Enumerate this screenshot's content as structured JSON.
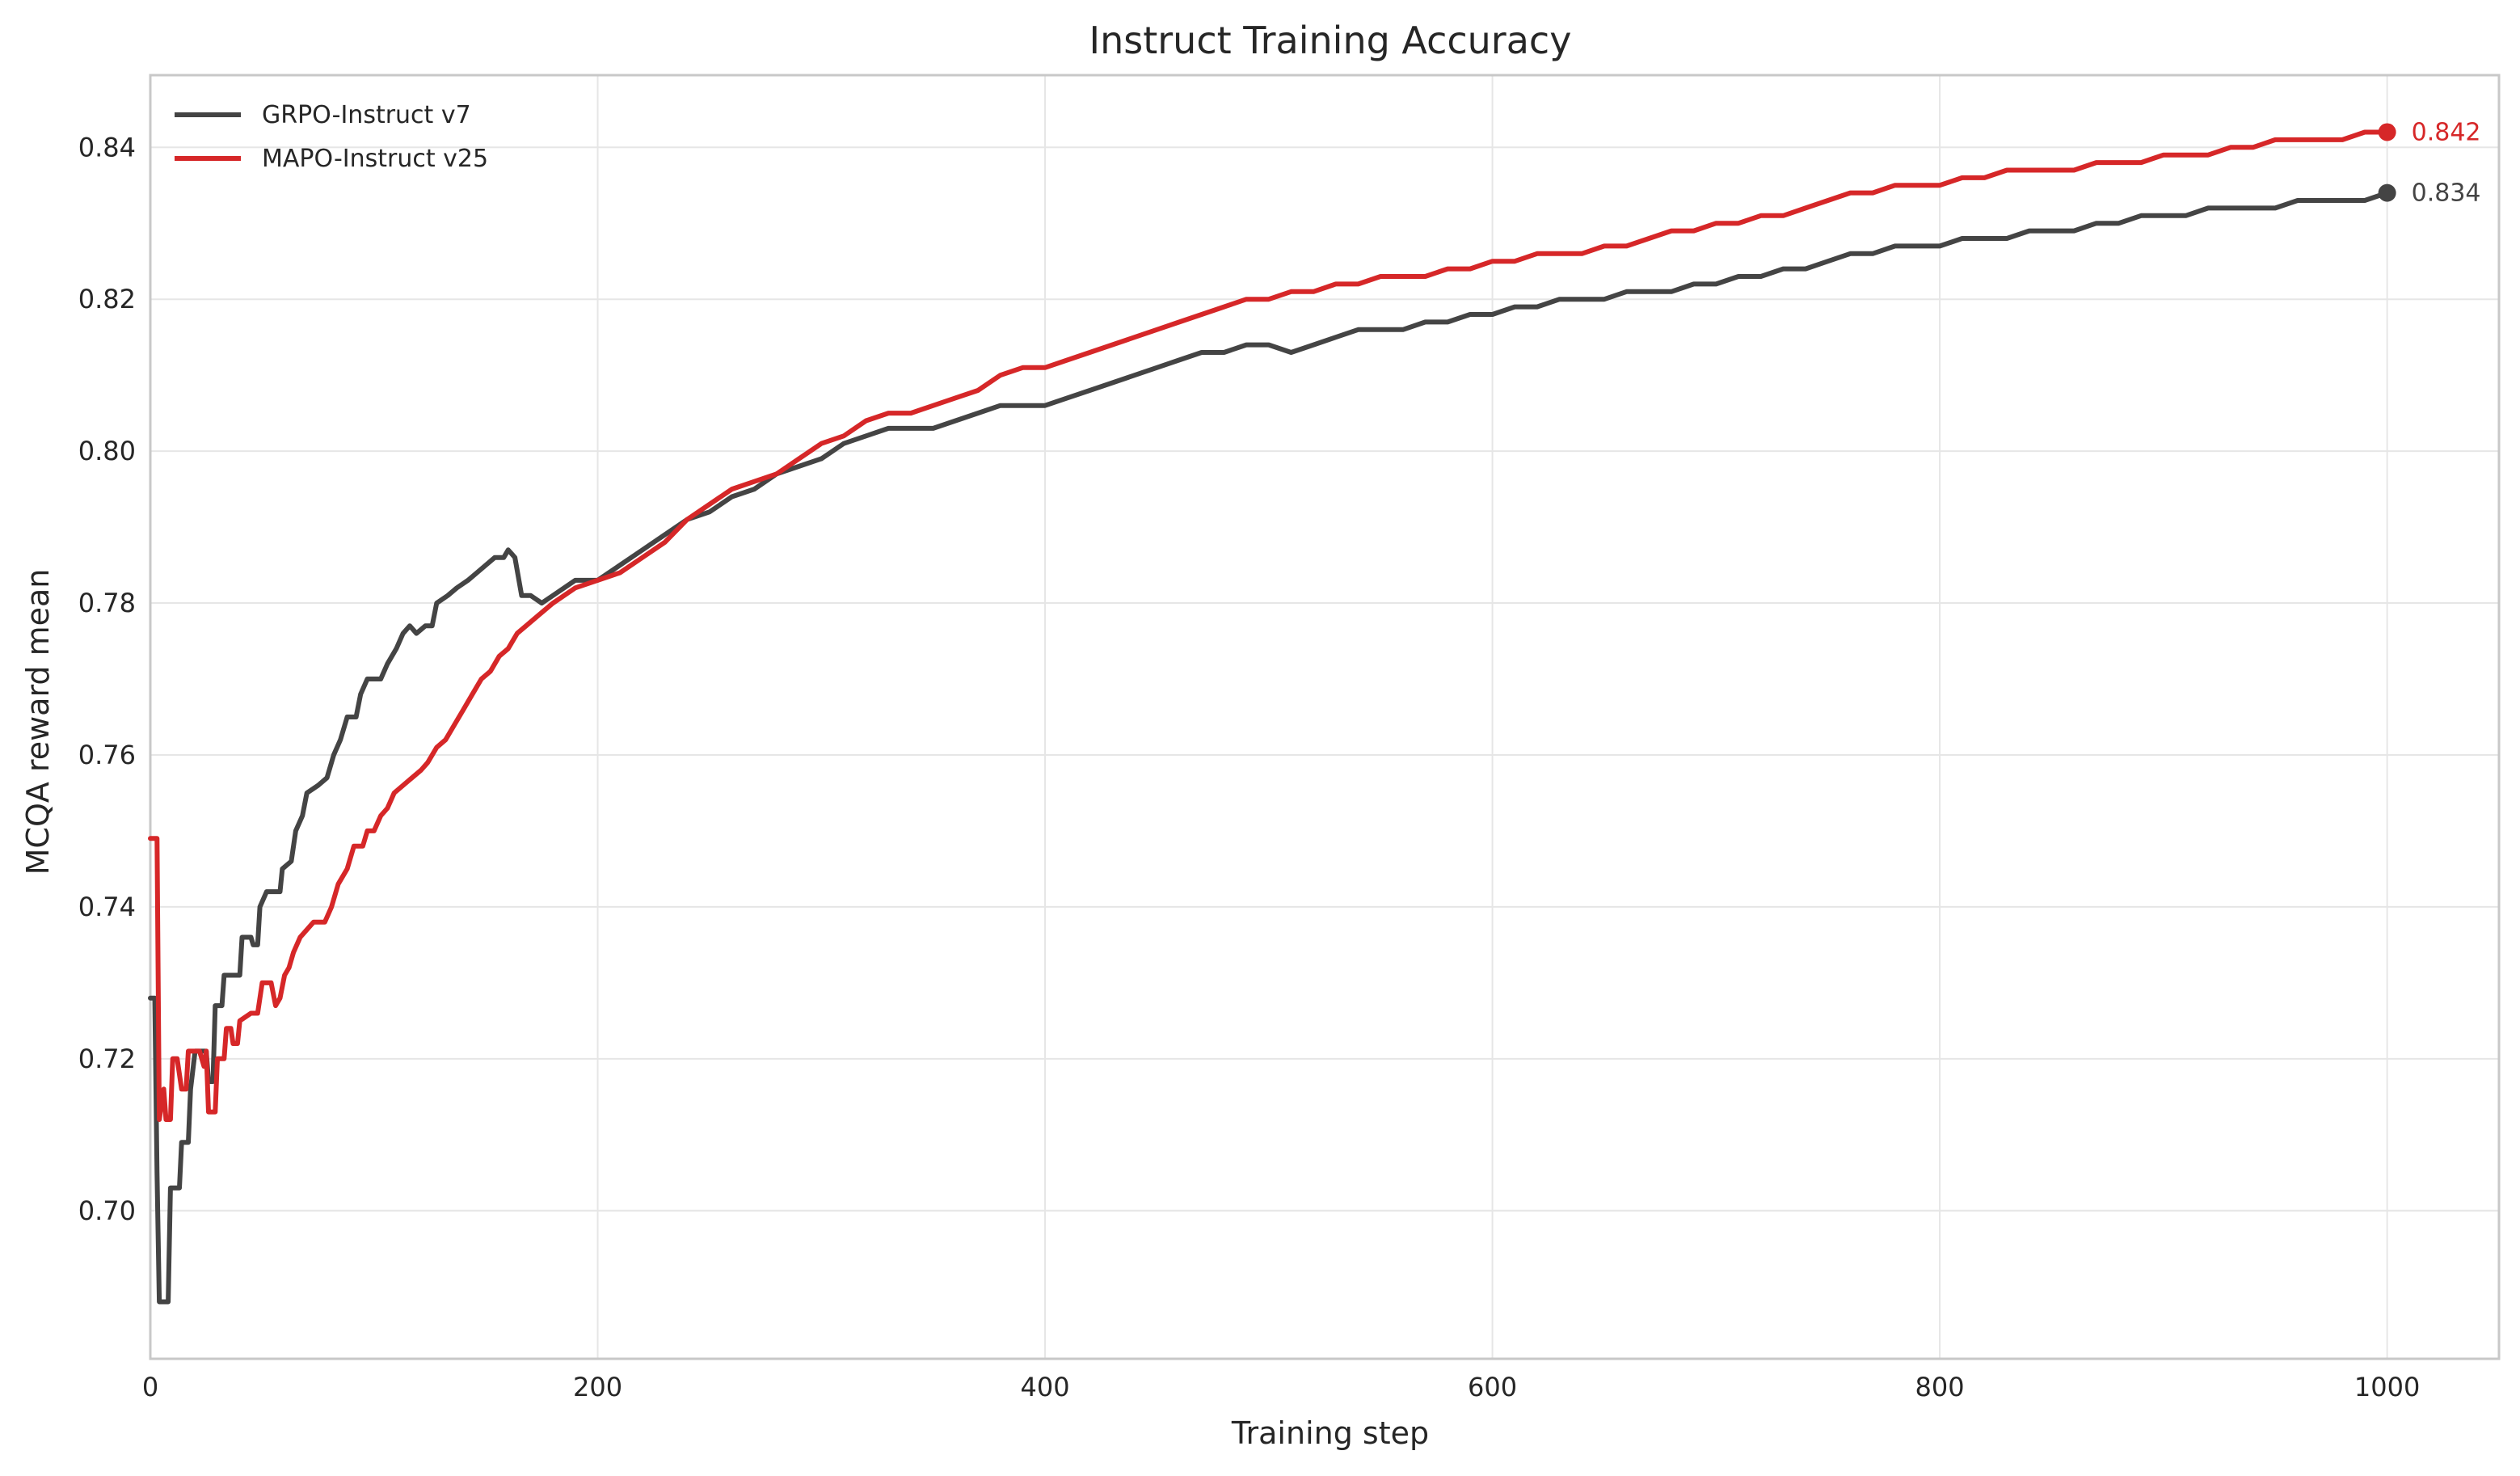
{
  "chart_data": {
    "type": "line",
    "title": "Instruct Training Accuracy",
    "xlabel": "Training step",
    "ylabel": "MCQA reward mean",
    "xlim": [
      0,
      1050
    ],
    "ylim": [
      0.6805,
      0.8495
    ],
    "xticks": [
      0,
      200,
      400,
      600,
      800,
      1000
    ],
    "yticks": [
      0.7,
      0.72,
      0.74,
      0.76,
      0.78,
      0.8,
      0.82,
      0.84
    ],
    "grid": true,
    "legend_position": "top-left",
    "series": [
      {
        "name": "GRPO-Instruct v7",
        "color": "#444444",
        "end_label": "0.834",
        "points": [
          [
            0,
            0.728
          ],
          [
            2,
            0.728
          ],
          [
            3,
            0.705
          ],
          [
            4,
            0.688
          ],
          [
            8,
            0.688
          ],
          [
            9,
            0.703
          ],
          [
            13,
            0.703
          ],
          [
            14,
            0.709
          ],
          [
            17,
            0.709
          ],
          [
            18,
            0.716
          ],
          [
            20,
            0.721
          ],
          [
            25,
            0.721
          ],
          [
            26,
            0.717
          ],
          [
            28,
            0.717
          ],
          [
            29,
            0.727
          ],
          [
            32,
            0.727
          ],
          [
            33,
            0.731
          ],
          [
            40,
            0.731
          ],
          [
            41,
            0.736
          ],
          [
            45,
            0.736
          ],
          [
            46,
            0.735
          ],
          [
            48,
            0.735
          ],
          [
            49,
            0.74
          ],
          [
            52,
            0.742
          ],
          [
            58,
            0.742
          ],
          [
            59,
            0.745
          ],
          [
            63,
            0.746
          ],
          [
            65,
            0.75
          ],
          [
            68,
            0.752
          ],
          [
            70,
            0.755
          ],
          [
            75,
            0.756
          ],
          [
            79,
            0.757
          ],
          [
            82,
            0.76
          ],
          [
            85,
            0.762
          ],
          [
            88,
            0.765
          ],
          [
            92,
            0.765
          ],
          [
            94,
            0.768
          ],
          [
            97,
            0.77
          ],
          [
            103,
            0.77
          ],
          [
            106,
            0.772
          ],
          [
            110,
            0.774
          ],
          [
            113,
            0.776
          ],
          [
            116,
            0.777
          ],
          [
            119,
            0.776
          ],
          [
            123,
            0.777
          ],
          [
            126,
            0.777
          ],
          [
            128,
            0.78
          ],
          [
            133,
            0.781
          ],
          [
            137,
            0.782
          ],
          [
            142,
            0.783
          ],
          [
            146,
            0.784
          ],
          [
            150,
            0.785
          ],
          [
            154,
            0.786
          ],
          [
            158,
            0.786
          ],
          [
            160,
            0.787
          ],
          [
            163,
            0.786
          ],
          [
            166,
            0.781
          ],
          [
            170,
            0.781
          ],
          [
            175,
            0.78
          ],
          [
            180,
            0.781
          ],
          [
            190,
            0.783
          ],
          [
            200,
            0.783
          ],
          [
            210,
            0.785
          ],
          [
            220,
            0.787
          ],
          [
            230,
            0.789
          ],
          [
            240,
            0.791
          ],
          [
            250,
            0.792
          ],
          [
            260,
            0.794
          ],
          [
            270,
            0.795
          ],
          [
            280,
            0.797
          ],
          [
            290,
            0.798
          ],
          [
            300,
            0.799
          ],
          [
            310,
            0.801
          ],
          [
            320,
            0.802
          ],
          [
            330,
            0.803
          ],
          [
            340,
            0.803
          ],
          [
            350,
            0.803
          ],
          [
            360,
            0.804
          ],
          [
            370,
            0.805
          ],
          [
            380,
            0.806
          ],
          [
            390,
            0.806
          ],
          [
            400,
            0.806
          ],
          [
            410,
            0.807
          ],
          [
            420,
            0.808
          ],
          [
            430,
            0.809
          ],
          [
            440,
            0.81
          ],
          [
            450,
            0.811
          ],
          [
            460,
            0.812
          ],
          [
            470,
            0.813
          ],
          [
            480,
            0.813
          ],
          [
            490,
            0.814
          ],
          [
            500,
            0.814
          ],
          [
            510,
            0.813
          ],
          [
            520,
            0.814
          ],
          [
            530,
            0.815
          ],
          [
            540,
            0.816
          ],
          [
            550,
            0.816
          ],
          [
            560,
            0.816
          ],
          [
            570,
            0.817
          ],
          [
            580,
            0.817
          ],
          [
            590,
            0.818
          ],
          [
            600,
            0.818
          ],
          [
            610,
            0.819
          ],
          [
            620,
            0.819
          ],
          [
            630,
            0.82
          ],
          [
            640,
            0.82
          ],
          [
            650,
            0.82
          ],
          [
            660,
            0.821
          ],
          [
            670,
            0.821
          ],
          [
            680,
            0.821
          ],
          [
            690,
            0.822
          ],
          [
            700,
            0.822
          ],
          [
            710,
            0.823
          ],
          [
            720,
            0.823
          ],
          [
            730,
            0.824
          ],
          [
            740,
            0.824
          ],
          [
            750,
            0.825
          ],
          [
            760,
            0.826
          ],
          [
            770,
            0.826
          ],
          [
            780,
            0.827
          ],
          [
            790,
            0.827
          ],
          [
            800,
            0.827
          ],
          [
            810,
            0.828
          ],
          [
            820,
            0.828
          ],
          [
            830,
            0.828
          ],
          [
            840,
            0.829
          ],
          [
            850,
            0.829
          ],
          [
            860,
            0.829
          ],
          [
            870,
            0.83
          ],
          [
            880,
            0.83
          ],
          [
            890,
            0.831
          ],
          [
            900,
            0.831
          ],
          [
            910,
            0.831
          ],
          [
            920,
            0.832
          ],
          [
            930,
            0.832
          ],
          [
            940,
            0.832
          ],
          [
            950,
            0.832
          ],
          [
            960,
            0.833
          ],
          [
            970,
            0.833
          ],
          [
            980,
            0.833
          ],
          [
            990,
            0.833
          ],
          [
            1000,
            0.834
          ]
        ]
      },
      {
        "name": "MAPO-Instruct v25",
        "color": "#d62728",
        "end_label": "0.842",
        "points": [
          [
            0,
            0.749
          ],
          [
            3,
            0.749
          ],
          [
            4,
            0.712
          ],
          [
            6,
            0.716
          ],
          [
            7,
            0.712
          ],
          [
            9,
            0.712
          ],
          [
            10,
            0.72
          ],
          [
            12,
            0.72
          ],
          [
            14,
            0.716
          ],
          [
            16,
            0.716
          ],
          [
            17,
            0.721
          ],
          [
            22,
            0.721
          ],
          [
            24,
            0.719
          ],
          [
            25,
            0.721
          ],
          [
            26,
            0.713
          ],
          [
            29,
            0.713
          ],
          [
            30,
            0.72
          ],
          [
            33,
            0.72
          ],
          [
            34,
            0.724
          ],
          [
            36,
            0.724
          ],
          [
            37,
            0.722
          ],
          [
            39,
            0.722
          ],
          [
            40,
            0.725
          ],
          [
            45,
            0.726
          ],
          [
            48,
            0.726
          ],
          [
            50,
            0.73
          ],
          [
            54,
            0.73
          ],
          [
            56,
            0.727
          ],
          [
            58,
            0.728
          ],
          [
            60,
            0.731
          ],
          [
            62,
            0.732
          ],
          [
            64,
            0.734
          ],
          [
            67,
            0.736
          ],
          [
            70,
            0.737
          ],
          [
            73,
            0.738
          ],
          [
            78,
            0.738
          ],
          [
            81,
            0.74
          ],
          [
            84,
            0.743
          ],
          [
            88,
            0.745
          ],
          [
            91,
            0.748
          ],
          [
            95,
            0.748
          ],
          [
            97,
            0.75
          ],
          [
            100,
            0.75
          ],
          [
            103,
            0.752
          ],
          [
            106,
            0.753
          ],
          [
            109,
            0.755
          ],
          [
            113,
            0.756
          ],
          [
            117,
            0.757
          ],
          [
            121,
            0.758
          ],
          [
            124,
            0.759
          ],
          [
            128,
            0.761
          ],
          [
            132,
            0.762
          ],
          [
            136,
            0.764
          ],
          [
            140,
            0.766
          ],
          [
            144,
            0.768
          ],
          [
            148,
            0.77
          ],
          [
            152,
            0.771
          ],
          [
            156,
            0.773
          ],
          [
            160,
            0.774
          ],
          [
            164,
            0.776
          ],
          [
            168,
            0.777
          ],
          [
            172,
            0.778
          ],
          [
            176,
            0.779
          ],
          [
            180,
            0.78
          ],
          [
            190,
            0.782
          ],
          [
            200,
            0.783
          ],
          [
            210,
            0.784
          ],
          [
            220,
            0.786
          ],
          [
            230,
            0.788
          ],
          [
            240,
            0.791
          ],
          [
            250,
            0.793
          ],
          [
            260,
            0.795
          ],
          [
            270,
            0.796
          ],
          [
            280,
            0.797
          ],
          [
            290,
            0.799
          ],
          [
            300,
            0.801
          ],
          [
            310,
            0.802
          ],
          [
            320,
            0.804
          ],
          [
            330,
            0.805
          ],
          [
            340,
            0.805
          ],
          [
            350,
            0.806
          ],
          [
            360,
            0.807
          ],
          [
            370,
            0.808
          ],
          [
            380,
            0.81
          ],
          [
            390,
            0.811
          ],
          [
            400,
            0.811
          ],
          [
            410,
            0.812
          ],
          [
            420,
            0.813
          ],
          [
            430,
            0.814
          ],
          [
            440,
            0.815
          ],
          [
            450,
            0.816
          ],
          [
            460,
            0.817
          ],
          [
            470,
            0.818
          ],
          [
            480,
            0.819
          ],
          [
            490,
            0.82
          ],
          [
            500,
            0.82
          ],
          [
            510,
            0.821
          ],
          [
            520,
            0.821
          ],
          [
            530,
            0.822
          ],
          [
            540,
            0.822
          ],
          [
            550,
            0.823
          ],
          [
            560,
            0.823
          ],
          [
            570,
            0.823
          ],
          [
            580,
            0.824
          ],
          [
            590,
            0.824
          ],
          [
            600,
            0.825
          ],
          [
            610,
            0.825
          ],
          [
            620,
            0.826
          ],
          [
            630,
            0.826
          ],
          [
            640,
            0.826
          ],
          [
            650,
            0.827
          ],
          [
            660,
            0.827
          ],
          [
            670,
            0.828
          ],
          [
            680,
            0.829
          ],
          [
            690,
            0.829
          ],
          [
            700,
            0.83
          ],
          [
            710,
            0.83
          ],
          [
            720,
            0.831
          ],
          [
            730,
            0.831
          ],
          [
            740,
            0.832
          ],
          [
            750,
            0.833
          ],
          [
            760,
            0.834
          ],
          [
            770,
            0.834
          ],
          [
            780,
            0.835
          ],
          [
            790,
            0.835
          ],
          [
            800,
            0.835
          ],
          [
            810,
            0.836
          ],
          [
            820,
            0.836
          ],
          [
            830,
            0.837
          ],
          [
            840,
            0.837
          ],
          [
            850,
            0.837
          ],
          [
            860,
            0.837
          ],
          [
            870,
            0.838
          ],
          [
            880,
            0.838
          ],
          [
            890,
            0.838
          ],
          [
            900,
            0.839
          ],
          [
            910,
            0.839
          ],
          [
            920,
            0.839
          ],
          [
            930,
            0.84
          ],
          [
            940,
            0.84
          ],
          [
            950,
            0.841
          ],
          [
            960,
            0.841
          ],
          [
            970,
            0.841
          ],
          [
            980,
            0.841
          ],
          [
            990,
            0.842
          ],
          [
            1000,
            0.842
          ]
        ]
      }
    ]
  }
}
